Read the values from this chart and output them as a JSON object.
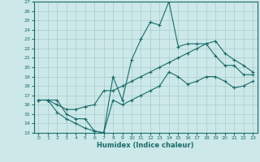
{
  "xlabel": "Humidex (Indice chaleur)",
  "bg_color": "#cce8e8",
  "line_color": "#1a6b6b",
  "grid_color": "#aacccc",
  "xlim": [
    -0.5,
    23.5
  ],
  "ylim": [
    13,
    27
  ],
  "xticks": [
    0,
    1,
    2,
    3,
    4,
    5,
    6,
    7,
    8,
    9,
    10,
    11,
    12,
    13,
    14,
    15,
    16,
    17,
    18,
    19,
    20,
    21,
    22,
    23
  ],
  "yticks": [
    13,
    14,
    15,
    16,
    17,
    18,
    19,
    20,
    21,
    22,
    23,
    24,
    25,
    26,
    27
  ],
  "line1_x": [
    0,
    1,
    2,
    3,
    4,
    5,
    6,
    7,
    8,
    9,
    10,
    11,
    12,
    13,
    14,
    15,
    16,
    17,
    18,
    19,
    20,
    21,
    22,
    23
  ],
  "line1_y": [
    16.5,
    16.5,
    16.5,
    15.0,
    14.5,
    14.5,
    13.2,
    13.0,
    19.0,
    16.5,
    20.8,
    23.0,
    24.8,
    24.5,
    27.0,
    22.2,
    22.5,
    22.5,
    22.5,
    21.2,
    20.2,
    20.2,
    19.2,
    19.2
  ],
  "line2_x": [
    0,
    1,
    2,
    3,
    4,
    5,
    6,
    7,
    8,
    9,
    10,
    11,
    12,
    13,
    14,
    15,
    16,
    17,
    18,
    19,
    20,
    21,
    22,
    23
  ],
  "line2_y": [
    16.5,
    16.5,
    16.0,
    15.5,
    15.5,
    15.8,
    16.0,
    17.5,
    17.5,
    18.0,
    18.5,
    19.0,
    19.5,
    20.0,
    20.5,
    21.0,
    21.5,
    22.0,
    22.5,
    22.8,
    21.5,
    20.8,
    20.2,
    19.5
  ],
  "line3_x": [
    0,
    1,
    2,
    3,
    4,
    5,
    6,
    7,
    8,
    9,
    10,
    11,
    12,
    13,
    14,
    15,
    16,
    17,
    18,
    19,
    20,
    21,
    22,
    23
  ],
  "line3_y": [
    16.5,
    16.5,
    15.2,
    14.5,
    14.0,
    13.5,
    13.2,
    13.0,
    16.5,
    16.0,
    16.5,
    17.0,
    17.5,
    18.0,
    19.5,
    19.0,
    18.2,
    18.5,
    19.0,
    19.0,
    18.5,
    17.8,
    18.0,
    18.5
  ]
}
